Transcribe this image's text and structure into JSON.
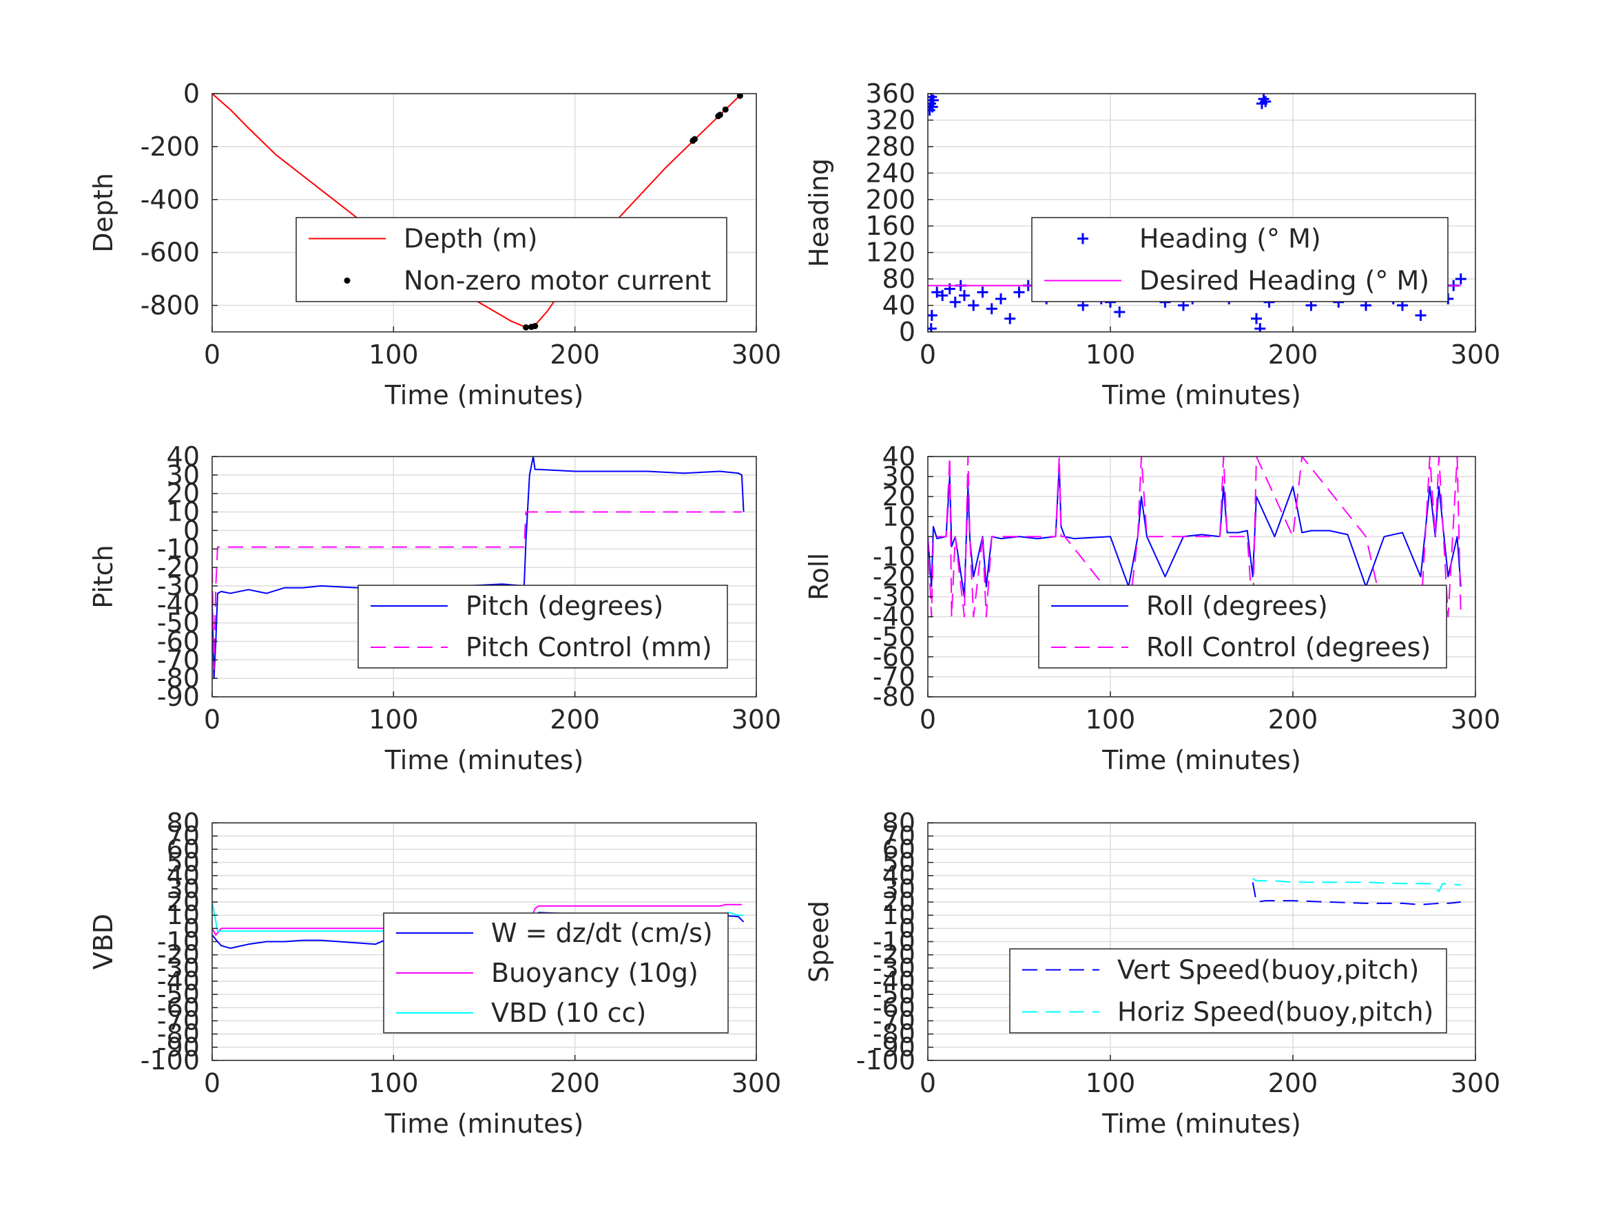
{
  "figure": {
    "background": "#ffffff",
    "grid_color": "#dcdcdc",
    "axis_color": "#262626",
    "font_color": "#262626"
  },
  "chart_data": [
    {
      "id": "depth",
      "type": "line",
      "xlabel": "Time (minutes)",
      "ylabel": "Depth",
      "xlim": [
        0,
        300
      ],
      "ylim": [
        -900,
        0
      ],
      "xticks": [
        "0",
        "100",
        "200",
        "300"
      ],
      "yticks": [
        "0",
        "-200",
        "-400",
        "-600",
        "-800"
      ],
      "grid": true,
      "legend_position": "center-right",
      "series": [
        {
          "name": "Depth (m)",
          "style": "line",
          "color": "#ff0000",
          "x": [
            0,
            10,
            20,
            35,
            50,
            65,
            80,
            95,
            110,
            125,
            140,
            155,
            165,
            172,
            178,
            185,
            195,
            205,
            220,
            235,
            250,
            265,
            280,
            292
          ],
          "y": [
            0,
            -60,
            -130,
            -230,
            -310,
            -390,
            -470,
            -590,
            -660,
            -710,
            -760,
            -820,
            -860,
            -880,
            -875,
            -820,
            -720,
            -610,
            -500,
            -390,
            -280,
            -180,
            -80,
            0
          ]
        },
        {
          "name": "Non-zero motor current",
          "style": "dots",
          "color": "#000000",
          "x": [
            173,
            176,
            178,
            265,
            266,
            279,
            280,
            283,
            291
          ],
          "y": [
            -883,
            -881,
            -878,
            -178,
            -172,
            -85,
            -80,
            -60,
            -8
          ]
        }
      ]
    },
    {
      "id": "heading",
      "type": "scatter",
      "xlabel": "Time (minutes)",
      "ylabel": "Heading",
      "xlim": [
        0,
        300
      ],
      "ylim": [
        0,
        360
      ],
      "xticks": [
        "0",
        "100",
        "200",
        "300"
      ],
      "yticks": [
        "0",
        "40",
        "80",
        "120",
        "160",
        "200",
        "240",
        "280",
        "320",
        "360"
      ],
      "grid": true,
      "legend_position": "center",
      "series": [
        {
          "name": "Heading (° M)",
          "style": "plus",
          "color": "#0000ff",
          "x": [
            1,
            1.5,
            2,
            2.5,
            3,
            1.8,
            2.2,
            5,
            8,
            12,
            15,
            18,
            20,
            25,
            30,
            35,
            40,
            45,
            50,
            55,
            60,
            65,
            70,
            72,
            75,
            80,
            85,
            90,
            95,
            100,
            105,
            110,
            115,
            118,
            120,
            125,
            130,
            135,
            140,
            145,
            150,
            155,
            160,
            163,
            165,
            170,
            175,
            178,
            180,
            182,
            183,
            184,
            185,
            187,
            190,
            195,
            198,
            200,
            205,
            210,
            215,
            220,
            225,
            230,
            235,
            240,
            245,
            248,
            250,
            255,
            260,
            265,
            270,
            275,
            280,
            285,
            288,
            292
          ],
          "y": [
            335,
            345,
            355,
            340,
            350,
            5,
            25,
            60,
            55,
            65,
            45,
            70,
            55,
            40,
            60,
            35,
            50,
            20,
            60,
            70,
            55,
            50,
            80,
            90,
            65,
            55,
            40,
            70,
            50,
            45,
            30,
            55,
            70,
            80,
            110,
            60,
            45,
            70,
            40,
            50,
            60,
            70,
            100,
            120,
            50,
            65,
            130,
            70,
            20,
            5,
            345,
            352,
            348,
            45,
            60,
            75,
            100,
            160,
            70,
            40,
            55,
            80,
            45,
            70,
            110,
            40,
            60,
            135,
            90,
            50,
            40,
            70,
            25,
            60,
            95,
            50,
            70,
            80
          ]
        },
        {
          "name": "Desired Heading (° M)",
          "style": "line",
          "color": "#ff00ff",
          "x": [
            0,
            50,
            100,
            150,
            200,
            250,
            292
          ],
          "y": [
            70,
            70,
            70,
            70,
            70,
            70,
            70
          ]
        }
      ]
    },
    {
      "id": "pitch",
      "type": "line",
      "xlabel": "Time (minutes)",
      "ylabel": "Pitch",
      "xlim": [
        0,
        300
      ],
      "ylim": [
        -90,
        40
      ],
      "xticks": [
        "0",
        "100",
        "200",
        "300"
      ],
      "yticks": [
        "-90",
        "-80",
        "-70",
        "-60",
        "-50",
        "-40",
        "-30",
        "-20",
        "-10",
        "0",
        "10",
        "20",
        "30",
        "40"
      ],
      "grid": true,
      "legend_position": "lower-right",
      "series": [
        {
          "name": "Pitch (degrees)",
          "style": "line",
          "color": "#0000ff",
          "x": [
            0,
            1,
            2,
            3,
            5,
            10,
            20,
            30,
            40,
            50,
            60,
            80,
            100,
            120,
            140,
            160,
            172,
            173,
            175,
            177,
            178,
            180,
            200,
            220,
            240,
            260,
            280,
            290,
            292,
            293
          ],
          "y": [
            -40,
            -80,
            -60,
            -34,
            -33,
            -34,
            -32,
            -34,
            -31,
            -31,
            -30,
            -31,
            -30,
            -31,
            -30,
            -29,
            -30,
            -5,
            30,
            40,
            33,
            33,
            32,
            32,
            32,
            31,
            32,
            31,
            30,
            10
          ]
        },
        {
          "name": "Pitch Control (mm)",
          "style": "dash",
          "color": "#ff00ff",
          "x": [
            0,
            1,
            2,
            3,
            172,
            173,
            175,
            180,
            292
          ],
          "y": [
            -20,
            -75,
            -30,
            -9,
            -9,
            10,
            10,
            10,
            10
          ]
        }
      ]
    },
    {
      "id": "roll",
      "type": "line",
      "xlabel": "Time (minutes)",
      "ylabel": "Roll",
      "xlim": [
        0,
        300
      ],
      "ylim": [
        -80,
        40
      ],
      "xticks": [
        "0",
        "100",
        "200",
        "300"
      ],
      "yticks": [
        "-80",
        "-70",
        "-60",
        "-50",
        "-40",
        "-30",
        "-20",
        "-10",
        "0",
        "10",
        "20",
        "30",
        "40"
      ],
      "grid": true,
      "legend_position": "lower-right",
      "series": [
        {
          "name": "Roll (degrees)",
          "style": "line",
          "color": "#0000ff",
          "x": [
            0,
            2,
            3,
            5,
            10,
            12,
            13,
            15,
            20,
            22,
            23,
            25,
            30,
            32,
            35,
            40,
            50,
            60,
            70,
            72,
            73,
            75,
            80,
            100,
            110,
            115,
            117,
            120,
            130,
            140,
            150,
            160,
            162,
            164,
            170,
            175,
            178,
            180,
            190,
            200,
            205,
            210,
            220,
            230,
            240,
            250,
            260,
            270,
            275,
            278,
            280,
            285,
            290,
            292
          ],
          "y": [
            0,
            -25,
            5,
            -1,
            0,
            30,
            -5,
            0,
            -30,
            25,
            -1,
            -20,
            0,
            -25,
            0,
            -1,
            0,
            -1,
            0,
            35,
            5,
            0,
            -1,
            0,
            -25,
            0,
            20,
            0,
            -20,
            0,
            1,
            0,
            25,
            2,
            2,
            3,
            -20,
            20,
            0,
            25,
            2,
            3,
            3,
            1,
            -25,
            0,
            2,
            -20,
            25,
            0,
            25,
            -20,
            0,
            -25
          ]
        },
        {
          "name": "Roll Control (degrees)",
          "style": "dash",
          "color": "#ff00ff",
          "x": [
            0,
            2,
            3,
            5,
            10,
            12,
            13,
            15,
            20,
            22,
            23,
            25,
            30,
            32,
            35,
            40,
            60,
            70,
            72,
            73,
            75,
            110,
            115,
            117,
            120,
            160,
            162,
            164,
            175,
            178,
            180,
            200,
            205,
            240,
            250,
            270,
            275,
            278,
            280,
            285,
            290,
            292
          ],
          "y": [
            0,
            -40,
            0,
            0,
            0,
            40,
            -40,
            0,
            -40,
            40,
            0,
            -40,
            0,
            -40,
            0,
            0,
            0,
            0,
            40,
            0,
            0,
            -40,
            0,
            40,
            0,
            0,
            40,
            0,
            0,
            -40,
            40,
            0,
            40,
            0,
            -40,
            -40,
            40,
            0,
            40,
            -40,
            40,
            -40
          ]
        }
      ]
    },
    {
      "id": "vbd",
      "type": "line",
      "xlabel": "Time (minutes)",
      "ylabel": "VBD",
      "xlim": [
        0,
        300
      ],
      "ylim": [
        -100,
        80
      ],
      "xticks": [
        "0",
        "100",
        "200",
        "300"
      ],
      "yticks": [
        "-100",
        "-90",
        "-80",
        "-70",
        "-60",
        "-50",
        "-40",
        "-30",
        "-20",
        "-10",
        "0",
        "10",
        "20",
        "30",
        "40",
        "50",
        "60",
        "70",
        "80"
      ],
      "grid": true,
      "legend_position": "center-right",
      "series": [
        {
          "name": "W = dz/dt (cm/s)",
          "style": "line",
          "color": "#0000ff",
          "x": [
            0,
            3,
            5,
            10,
            20,
            30,
            40,
            50,
            60,
            70,
            80,
            90,
            95,
            100,
            110,
            120,
            125,
            130,
            140,
            150,
            160,
            170,
            173,
            175,
            178,
            180,
            200,
            220,
            240,
            260,
            280,
            290,
            293
          ],
          "y": [
            -5,
            -10,
            -13,
            -15,
            -12,
            -10,
            -10,
            -9,
            -9,
            -10,
            -11,
            -12,
            -9,
            -5,
            -2,
            0,
            -5,
            -3,
            -5,
            -4,
            -3,
            -5,
            -2,
            3,
            10,
            12,
            11,
            10,
            10,
            10,
            10,
            9,
            5
          ]
        },
        {
          "name": "Buoyancy (10g)",
          "style": "line",
          "color": "#ff00ff",
          "x": [
            0,
            2,
            5,
            170,
            173,
            175,
            178,
            180,
            200,
            280,
            283,
            292
          ],
          "y": [
            0,
            -5,
            0,
            0,
            0,
            5,
            15,
            17,
            17,
            17,
            18,
            18
          ]
        },
        {
          "name": "VBD (10 cc)",
          "style": "line",
          "color": "#00ffff",
          "x": [
            0,
            3,
            5,
            172,
            174,
            176,
            280,
            285,
            290,
            293
          ],
          "y": [
            20,
            -2,
            -2,
            -2,
            8,
            10,
            10,
            12,
            10,
            10
          ]
        }
      ]
    },
    {
      "id": "speed",
      "type": "line",
      "xlabel": "Time (minutes)",
      "ylabel": "Speed",
      "xlim": [
        0,
        300
      ],
      "ylim": [
        -100,
        80
      ],
      "xticks": [
        "0",
        "100",
        "200",
        "300"
      ],
      "yticks": [
        "-100",
        "-90",
        "-80",
        "-70",
        "-60",
        "-50",
        "-40",
        "-30",
        "-20",
        "-10",
        "0",
        "10",
        "20",
        "30",
        "40",
        "50",
        "60",
        "70",
        "80"
      ],
      "grid": true,
      "legend_position": "lower-right",
      "series": [
        {
          "name": "Vert Speed(buoy,pitch)",
          "style": "dash",
          "color": "#0000ff",
          "x": [
            178,
            180,
            185,
            200,
            220,
            240,
            260,
            270,
            280,
            285,
            292
          ],
          "y": [
            35,
            20,
            21,
            21,
            20,
            19,
            19,
            18,
            19,
            19,
            20
          ]
        },
        {
          "name": "Horiz Speed(buoy,pitch)",
          "style": "dash",
          "color": "#00ffff",
          "x": [
            178,
            180,
            190,
            200,
            220,
            240,
            260,
            275,
            280,
            282,
            292
          ],
          "y": [
            38,
            36,
            36,
            35,
            35,
            35,
            34,
            34,
            28,
            34,
            33
          ]
        }
      ]
    }
  ]
}
